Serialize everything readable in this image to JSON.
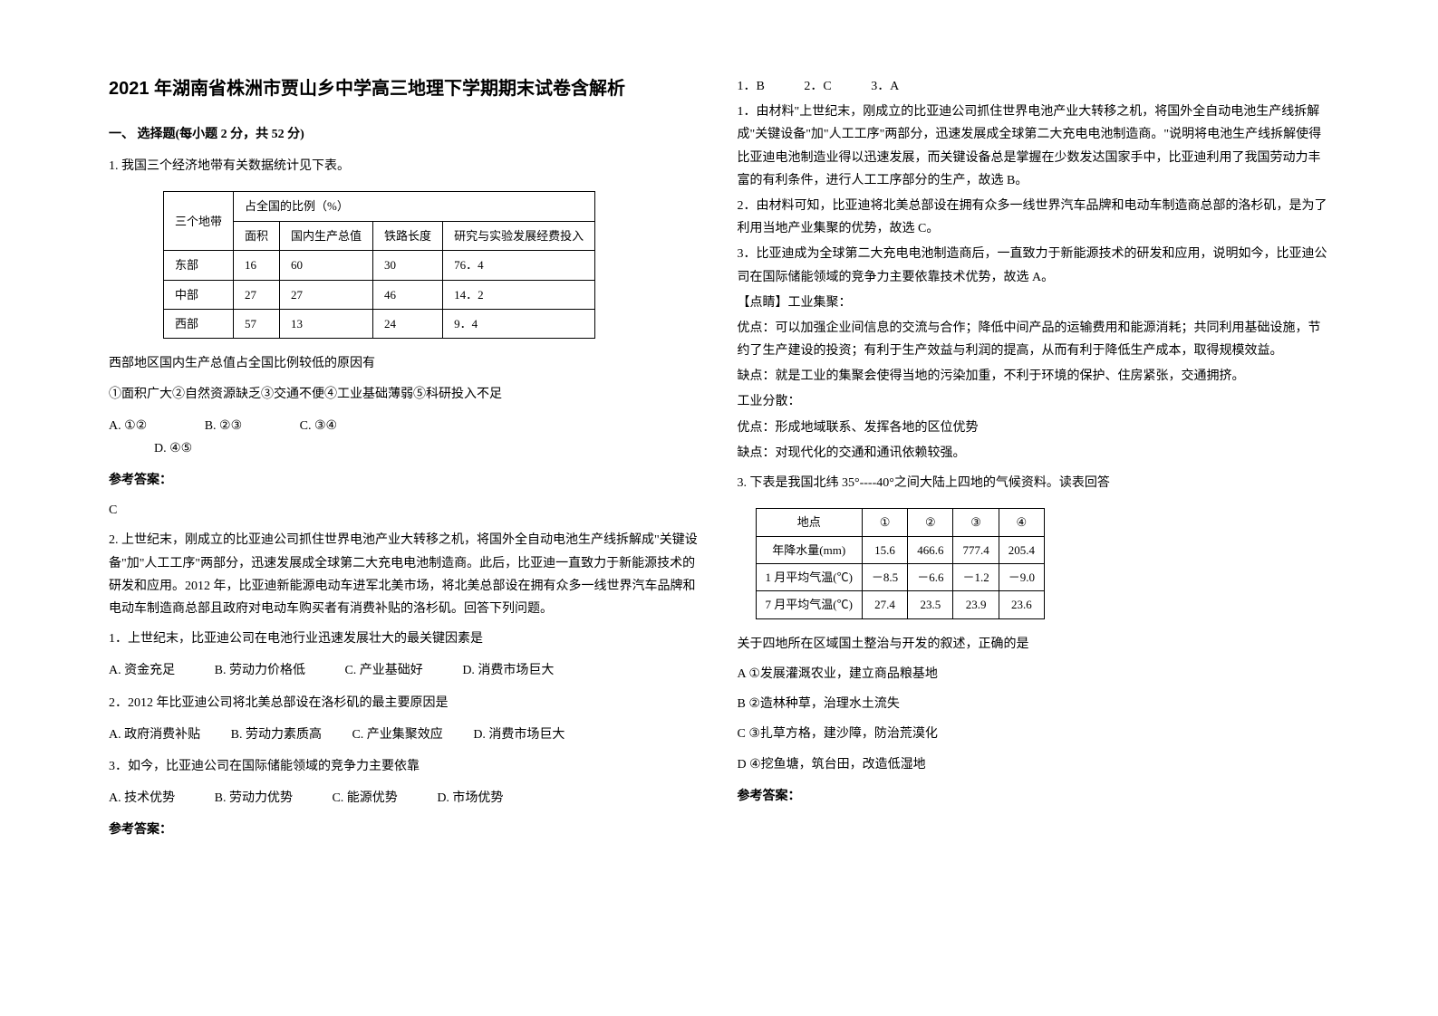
{
  "title": "2021 年湖南省株洲市贾山乡中学高三地理下学期期末试卷含解析",
  "section1": "一、 选择题(每小题 2 分，共 52 分)",
  "q1": {
    "stem": "1. 我国三个经济地带有关数据统计见下表。",
    "table": {
      "header1": "三个地带",
      "header2": "占全国的比例（%）",
      "cols": [
        "面积",
        "国内生产总值",
        "铁路长度",
        "研究与实验发展经费投入"
      ],
      "rows": [
        {
          "region": "东部",
          "v1": "16",
          "v2": "60",
          "v3": "30",
          "v4": "76．4"
        },
        {
          "region": "中部",
          "v1": "27",
          "v2": "27",
          "v3": "46",
          "v4": "14．2"
        },
        {
          "region": "西部",
          "v1": "57",
          "v2": "13",
          "v3": "24",
          "v4": "9．4"
        }
      ]
    },
    "sub": "西部地区国内生产总值占全国比例较低的原因有",
    "conditions": "①面积广大②自然资源缺乏③交通不便④工业基础薄弱⑤科研投入不足",
    "optA": "A. ①②",
    "optB": "B. ②③",
    "optC": "C. ③④",
    "optD": "D. ④⑤",
    "answer_label": "参考答案：",
    "answer": "C"
  },
  "q2": {
    "stem": "2. 上世纪末，刚成立的比亚迪公司抓住世界电池产业大转移之机，将国外全自动电池生产线拆解成\"关键设备\"加\"人工工序\"两部分，迅速发展成全球第二大充电电池制造商。此后，比亚迪一直致力于新能源技术的研发和应用。2012 年，比亚迪新能源电动车进军北美市场，将北美总部设在拥有众多一线世界汽车品牌和电动车制造商总部且政府对电动车购买者有消费补贴的洛杉矶。回答下列问题。",
    "s1": "1．上世纪末，比亚迪公司在电池行业迅速发展壮大的最关键因素是",
    "s1A": "A. 资金充足",
    "s1B": "B. 劳动力价格低",
    "s1C": "C. 产业基础好",
    "s1D": "D. 消费市场巨大",
    "s2": "2．2012 年比亚迪公司将北美总部设在洛杉矶的最主要原因是",
    "s2A": "A. 政府消费补贴",
    "s2B": "B. 劳动力素质高",
    "s2C": "C. 产业集聚效应",
    "s2D": "D. 消费市场巨大",
    "s3": "3．如今，比亚迪公司在国际储能领域的竞争力主要依靠",
    "s3A": "A. 技术优势",
    "s3B": "B. 劳动力优势",
    "s3C": "C. 能源优势",
    "s3D": "D. 市场优势",
    "answer_label": "参考答案："
  },
  "right": {
    "ans": {
      "a1": "1．B",
      "a2": "2．C",
      "a3": "3．A"
    },
    "exp1": "1．由材料\"上世纪末，刚成立的比亚迪公司抓住世界电池产业大转移之机，将国外全自动电池生产线拆解成\"关键设备\"加\"人工工序\"两部分，迅速发展成全球第二大充电电池制造商。\"说明将电池生产线拆解使得比亚迪电池制造业得以迅速发展，而关键设备总是掌握在少数发达国家手中，比亚迪利用了我国劳动力丰富的有利条件，进行人工工序部分的生产，故选 B。",
    "exp2": "2．由材料可知，比亚迪将北美总部设在拥有众多一线世界汽车品牌和电动车制造商总部的洛杉矶，是为了利用当地产业集聚的优势，故选 C。",
    "exp3": "3．比亚迪成为全球第二大充电电池制造商后，一直致力于新能源技术的研发和应用，说明如今，比亚迪公司在国际储能领域的竞争力主要依靠技术优势，故选 A。",
    "tip_title": "【点睛】工业集聚：",
    "tip1": "优点：可以加强企业间信息的交流与合作；降低中间产品的运输费用和能源消耗；共同利用基础设施，节约了生产建设的投资；有利于生产效益与利润的提高，从而有利于降低生产成本，取得规模效益。",
    "tip2": "缺点：就是工业的集聚会使得当地的污染加重，不利于环境的保护、住房紧张，交通拥挤。",
    "tip3": "工业分散：",
    "tip4": "优点：形成地域联系、发挥各地的区位优势",
    "tip5": "缺点：对现代化的交通和通讯依赖较强。"
  },
  "q3": {
    "stem": "3. 下表是我国北纬 35°----40°之间大陆上四地的气候资料。读表回答",
    "table": {
      "h1": "地点",
      "h2": "①",
      "h3": "②",
      "h4": "③",
      "h5": "④",
      "r1": {
        "label": "年降水量(mm)",
        "v1": "15.6",
        "v2": "466.6",
        "v3": "777.4",
        "v4": "205.4"
      },
      "r2": {
        "label": "1 月平均气温(℃)",
        "v1": "－8.5",
        "v2": "－6.6",
        "v3": "－1.2",
        "v4": "－9.0"
      },
      "r3": {
        "label": "7 月平均气温(℃)",
        "v1": "27.4",
        "v2": "23.5",
        "v3": "23.9",
        "v4": "23.6"
      }
    },
    "sub": "关于四地所在区域国土整治与开发的叙述，正确的是",
    "optA": "A ①发展灌溉农业，建立商品粮基地",
    "optB": "B ②造林种草，治理水土流失",
    "optC": "C ③扎草方格，建沙障，防治荒漠化",
    "optD": "D ④挖鱼塘，筑台田，改造低湿地",
    "answer_label": "参考答案："
  }
}
